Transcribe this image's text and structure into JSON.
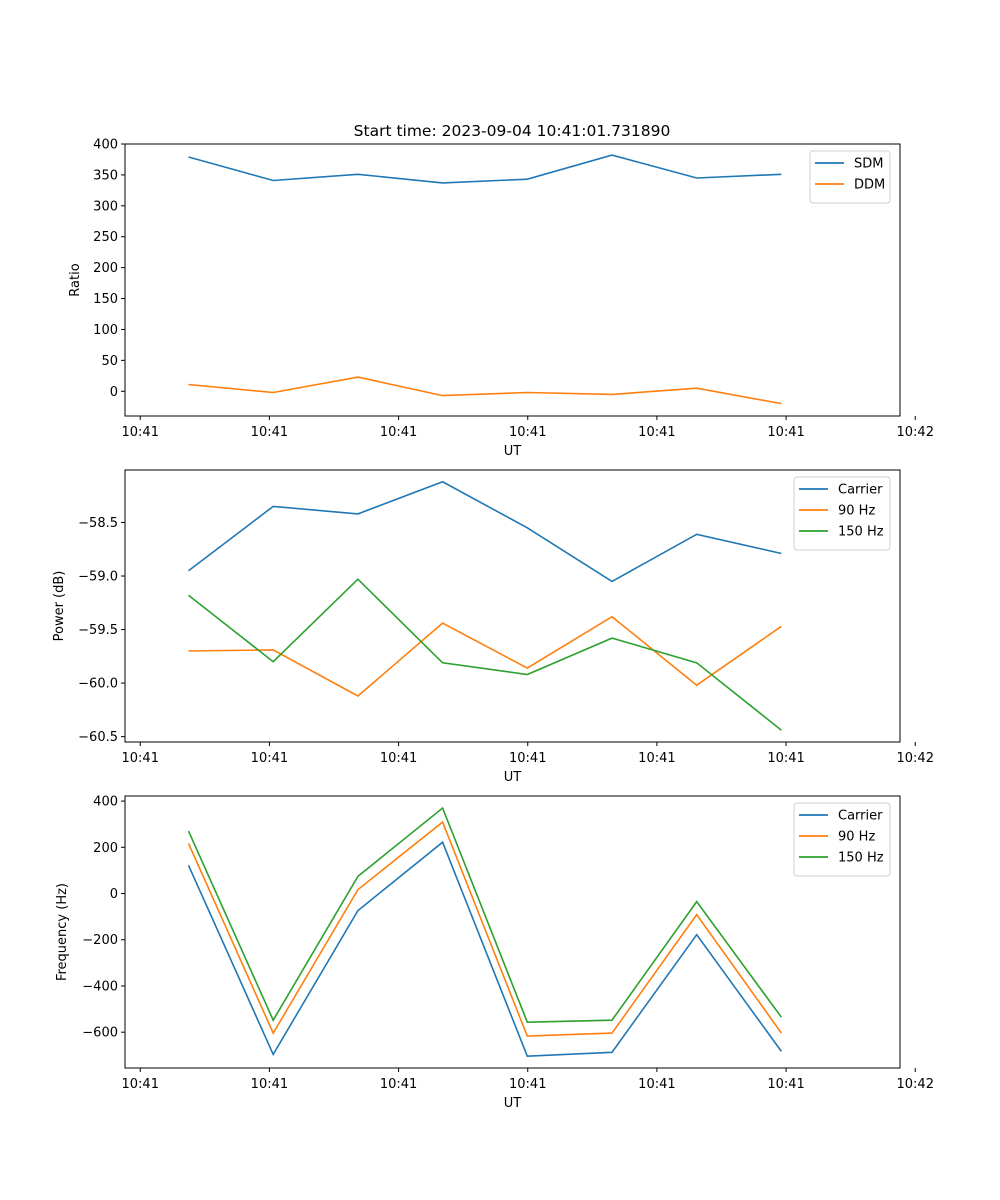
{
  "figure": {
    "title": "Start time: 2023-09-04 10:41:01.731890"
  },
  "chart_data": [
    {
      "type": "line",
      "title": "Start time: 2023-09-04 10:41:01.731890",
      "xlabel": "UT",
      "ylabel": "Ratio",
      "x_index": [
        0,
        1,
        2,
        3,
        4,
        5,
        6,
        7
      ],
      "xlim": [
        -0.75,
        8.4
      ],
      "xticks": [
        -0.57,
        0.955,
        2.48,
        4.005,
        5.53,
        7.055,
        8.58
      ],
      "xtick_labels": [
        "10:41",
        "10:41",
        "10:41",
        "10:41",
        "10:41",
        "10:41",
        "10:42"
      ],
      "ylim": [
        -40,
        400
      ],
      "yticks": [
        0,
        50,
        100,
        150,
        200,
        250,
        300,
        350,
        400
      ],
      "ytick_labels": [
        "0",
        "50",
        "100",
        "150",
        "200",
        "250",
        "300",
        "350",
        "400"
      ],
      "legend": "top-right",
      "grid": false,
      "series": [
        {
          "name": "SDM",
          "color": "#1f77b4",
          "values": [
            379,
            341,
            351,
            337,
            343,
            382,
            345,
            351
          ]
        },
        {
          "name": "DDM",
          "color": "#ff7f0e",
          "values": [
            11,
            -2,
            23,
            -7,
            -2,
            -5,
            5,
            -20
          ]
        }
      ]
    },
    {
      "type": "line",
      "title": "",
      "xlabel": "UT",
      "ylabel": "Power (dB)",
      "x_index": [
        0,
        1,
        2,
        3,
        4,
        5,
        6,
        7
      ],
      "xlim": [
        -0.75,
        8.4
      ],
      "xticks": [
        -0.57,
        0.955,
        2.48,
        4.005,
        5.53,
        7.055,
        8.58
      ],
      "xtick_labels": [
        "10:41",
        "10:41",
        "10:41",
        "10:41",
        "10:41",
        "10:41",
        "10:42"
      ],
      "ylim": [
        -60.55,
        -58.01
      ],
      "yticks": [
        -60.5,
        -60.0,
        -59.5,
        -59.0,
        -58.5
      ],
      "ytick_labels": [
        "−60.5",
        "−60.0",
        "−59.5",
        "−59.0",
        "−58.5"
      ],
      "legend": "top-right",
      "grid": false,
      "series": [
        {
          "name": "Carrier",
          "color": "#1f77b4",
          "values": [
            -58.95,
            -58.35,
            -58.42,
            -58.12,
            -58.55,
            -59.05,
            -58.61,
            -58.79
          ]
        },
        {
          "name": "90 Hz",
          "color": "#ff7f0e",
          "values": [
            -59.7,
            -59.69,
            -60.12,
            -59.44,
            -59.86,
            -59.38,
            -60.02,
            -59.47
          ]
        },
        {
          "name": "150 Hz",
          "color": "#2ca02c",
          "values": [
            -59.18,
            -59.8,
            -59.03,
            -59.81,
            -59.92,
            -59.58,
            -59.81,
            -60.44
          ]
        }
      ]
    },
    {
      "type": "line",
      "title": "",
      "xlabel": "UT",
      "ylabel": "Frequency (Hz)",
      "x_index": [
        0,
        1,
        2,
        3,
        4,
        5,
        6,
        7
      ],
      "xlim": [
        -0.75,
        8.4
      ],
      "xticks": [
        -0.57,
        0.955,
        2.48,
        4.005,
        5.53,
        7.055,
        8.58
      ],
      "xtick_labels": [
        "10:41",
        "10:41",
        "10:41",
        "10:41",
        "10:41",
        "10:41",
        "10:42"
      ],
      "ylim": [
        -755,
        422
      ],
      "yticks": [
        -600,
        -400,
        -200,
        0,
        200,
        400
      ],
      "ytick_labels": [
        "−600",
        "−400",
        "−200",
        "0",
        "200",
        "400"
      ],
      "legend": "top-right",
      "grid": false,
      "series": [
        {
          "name": "Carrier",
          "color": "#1f77b4",
          "values": [
            122,
            -696,
            -74,
            222,
            -704,
            -687,
            -178,
            -683
          ]
        },
        {
          "name": "90 Hz",
          "color": "#ff7f0e",
          "values": [
            217,
            -604,
            17,
            309,
            -617,
            -604,
            -91,
            -604
          ]
        },
        {
          "name": "150 Hz",
          "color": "#2ca02c",
          "values": [
            270,
            -548,
            74,
            370,
            -557,
            -548,
            -35,
            -535
          ]
        }
      ]
    }
  ]
}
